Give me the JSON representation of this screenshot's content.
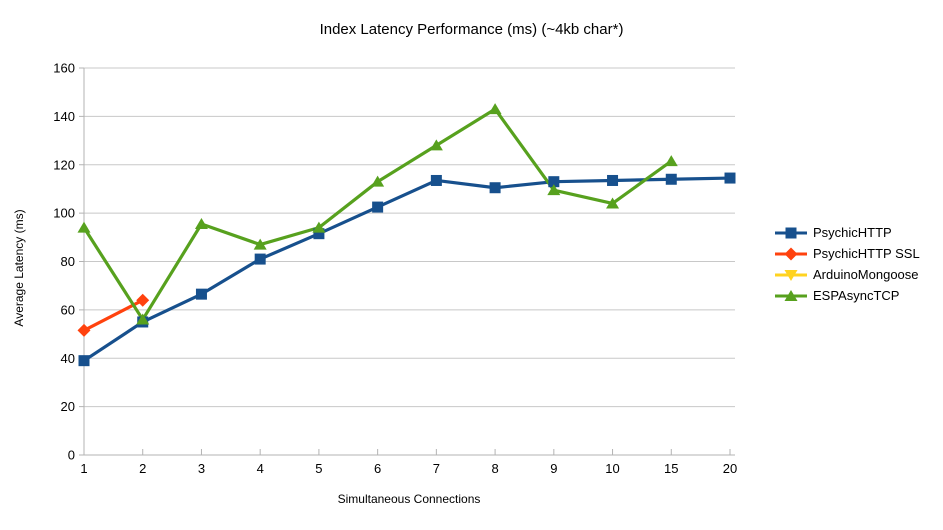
{
  "chart_data": {
    "type": "line",
    "title": "Index Latency Performance (ms) (~4kb char*)",
    "xlabel": "Simultaneous Connections",
    "ylabel": "Average Latency (ms)",
    "categories": [
      "1",
      "2",
      "3",
      "4",
      "5",
      "6",
      "7",
      "8",
      "9",
      "10",
      "15",
      "20"
    ],
    "ylim": [
      0,
      160
    ],
    "ytick_step": 20,
    "ytick_labels": [
      "0",
      "20",
      "40",
      "60",
      "80",
      "100",
      "120",
      "140",
      "160"
    ],
    "grid": "horizontal",
    "legend_position": "right",
    "colors": {
      "grid": "#c8c8c8",
      "axis": "#b3b3b3",
      "text": "#000000"
    },
    "series": [
      {
        "name": "PsychicHTTP",
        "color": "#17508D",
        "marker": "square",
        "values": [
          39,
          55,
          66.5,
          81,
          91.5,
          102.5,
          113.5,
          110.5,
          113,
          113.5,
          114,
          114.5
        ]
      },
      {
        "name": "PsychicHTTP SSL",
        "color": "#FF420E",
        "marker": "diamond",
        "values": [
          51.5,
          64,
          null,
          null,
          null,
          null,
          null,
          null,
          null,
          null,
          null,
          null
        ]
      },
      {
        "name": "ArduinoMongoose",
        "color": "#FFD320",
        "marker": "triangle-down",
        "values": [
          null,
          null,
          null,
          null,
          null,
          null,
          null,
          null,
          null,
          null,
          null,
          null
        ]
      },
      {
        "name": "ESPAsyncTCP",
        "color": "#57A11E",
        "marker": "triangle-up",
        "values": [
          94,
          56,
          95.5,
          87,
          94,
          113,
          128,
          143,
          109.5,
          104,
          121.5,
          null
        ]
      }
    ]
  }
}
